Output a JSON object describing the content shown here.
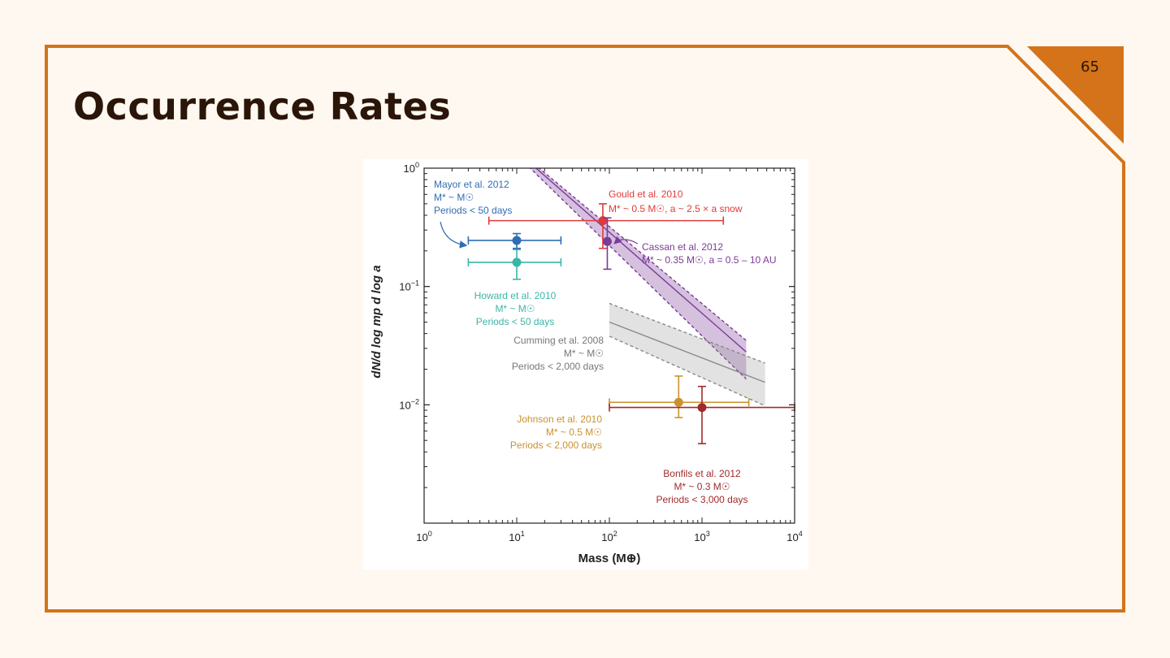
{
  "slide": {
    "title": "Occurrence Rates",
    "page_number": "65"
  },
  "colors": {
    "accent": "#d4731a",
    "title": "#2a1508",
    "background": "#fff8f0",
    "mayor": "#2e6db4",
    "howard": "#3bb5a8",
    "gould": "#e03a3a",
    "cassan": "#7b3b98",
    "cumming": "#8a8a8a",
    "johnson": "#c9922e",
    "bonfils": "#a12a2a"
  },
  "chart_data": {
    "type": "scatter",
    "title": "",
    "xlabel": "Mass (M⊕)",
    "ylabel": "dN/d log mp d log a",
    "xscale": "log",
    "yscale": "log",
    "xlim": [
      1,
      10000
    ],
    "ylim": [
      0.001,
      1
    ],
    "x_ticks": [
      {
        "value": 1,
        "base": "10",
        "exp": "0"
      },
      {
        "value": 10,
        "base": "10",
        "exp": "1"
      },
      {
        "value": 100,
        "base": "10",
        "exp": "2"
      },
      {
        "value": 1000,
        "base": "10",
        "exp": "3"
      },
      {
        "value": 10000,
        "base": "10",
        "exp": "4"
      }
    ],
    "y_ticks": [
      {
        "value": 1,
        "base": "10",
        "exp": "0"
      },
      {
        "value": 0.1,
        "base": "10",
        "exp": "−1"
      },
      {
        "value": 0.01,
        "base": "10",
        "exp": "−2"
      }
    ],
    "points": [
      {
        "name": "Mayor et al. 2012",
        "color_key": "mayor",
        "x": 10,
        "y": 0.245,
        "x_err": [
          3,
          30
        ],
        "y_err": [
          0.21,
          0.28
        ],
        "label_lines": [
          "Mayor et al. 2012",
          "M* ~ M☉",
          "Periods  < 50 days"
        ]
      },
      {
        "name": "Howard et al. 2010",
        "color_key": "howard",
        "x": 10,
        "y": 0.16,
        "x_err": [
          3,
          30
        ],
        "y_err": [
          0.115,
          0.205
        ],
        "label_lines": [
          "Howard et al. 2010",
          "M* ~ M☉",
          "Periods  < 50 days"
        ]
      },
      {
        "name": "Gould et al. 2010",
        "color_key": "gould",
        "x": 85,
        "y": 0.36,
        "x_err": [
          5,
          1700
        ],
        "y_err": [
          0.21,
          0.5
        ],
        "label_lines": [
          "Gould et al. 2010",
          "M* ~ 0.5 M☉, a ~ 2.5 × a snow"
        ]
      },
      {
        "name": "Cassan et al. 2012",
        "color_key": "cassan",
        "x": 95,
        "y": 0.24,
        "x_err": [
          90,
          100
        ],
        "y_err": [
          0.14,
          0.38
        ],
        "label_lines": [
          "Cassan et al. 2012",
          "M* ~ 0.35 M☉, a = 0.5 – 10 AU"
        ]
      },
      {
        "name": "Johnson et al. 2010",
        "color_key": "johnson",
        "x": 560,
        "y": 0.0105,
        "x_err": [
          100,
          3200
        ],
        "y_err": [
          0.0078,
          0.0175
        ],
        "label_lines": [
          "Johnson et al. 2010",
          "M* ~ 0.5 M☉",
          "Periods  < 2,000 days"
        ]
      },
      {
        "name": "Bonfils et al. 2012",
        "color_key": "bonfils",
        "x": 1000,
        "y": 0.0095,
        "x_err": [
          100,
          10000
        ],
        "y_err": [
          0.0047,
          0.0143
        ],
        "label_lines": [
          "Bonfils et al. 2012",
          "M* ~ 0.3 M☉",
          "Periods  < 3,000 days"
        ]
      }
    ],
    "bands": [
      {
        "name": "Cassan et al. 2012 power law",
        "color_key": "cassan",
        "center": [
          [
            11,
            1.3
          ],
          [
            3000,
            0.028
          ]
        ],
        "upper": [
          [
            11,
            1.35
          ],
          [
            3000,
            0.035
          ]
        ],
        "lower": [
          [
            11,
            1.2
          ],
          [
            3000,
            0.0165
          ]
        ]
      },
      {
        "name": "Cumming et al. 2008 power law",
        "color_key": "cumming",
        "center": [
          [
            100,
            0.05
          ],
          [
            4800,
            0.0155
          ]
        ],
        "upper": [
          [
            100,
            0.072
          ],
          [
            4800,
            0.0225
          ]
        ],
        "lower": [
          [
            100,
            0.038
          ],
          [
            4800,
            0.0098
          ]
        ]
      }
    ],
    "annotations": [
      {
        "name": "Cumming et al. 2008",
        "color_key": "cumming",
        "label_lines": [
          "Cumming et al. 2008",
          "M* ~ M☉",
          "Periods  < 2,000 days"
        ]
      }
    ]
  }
}
